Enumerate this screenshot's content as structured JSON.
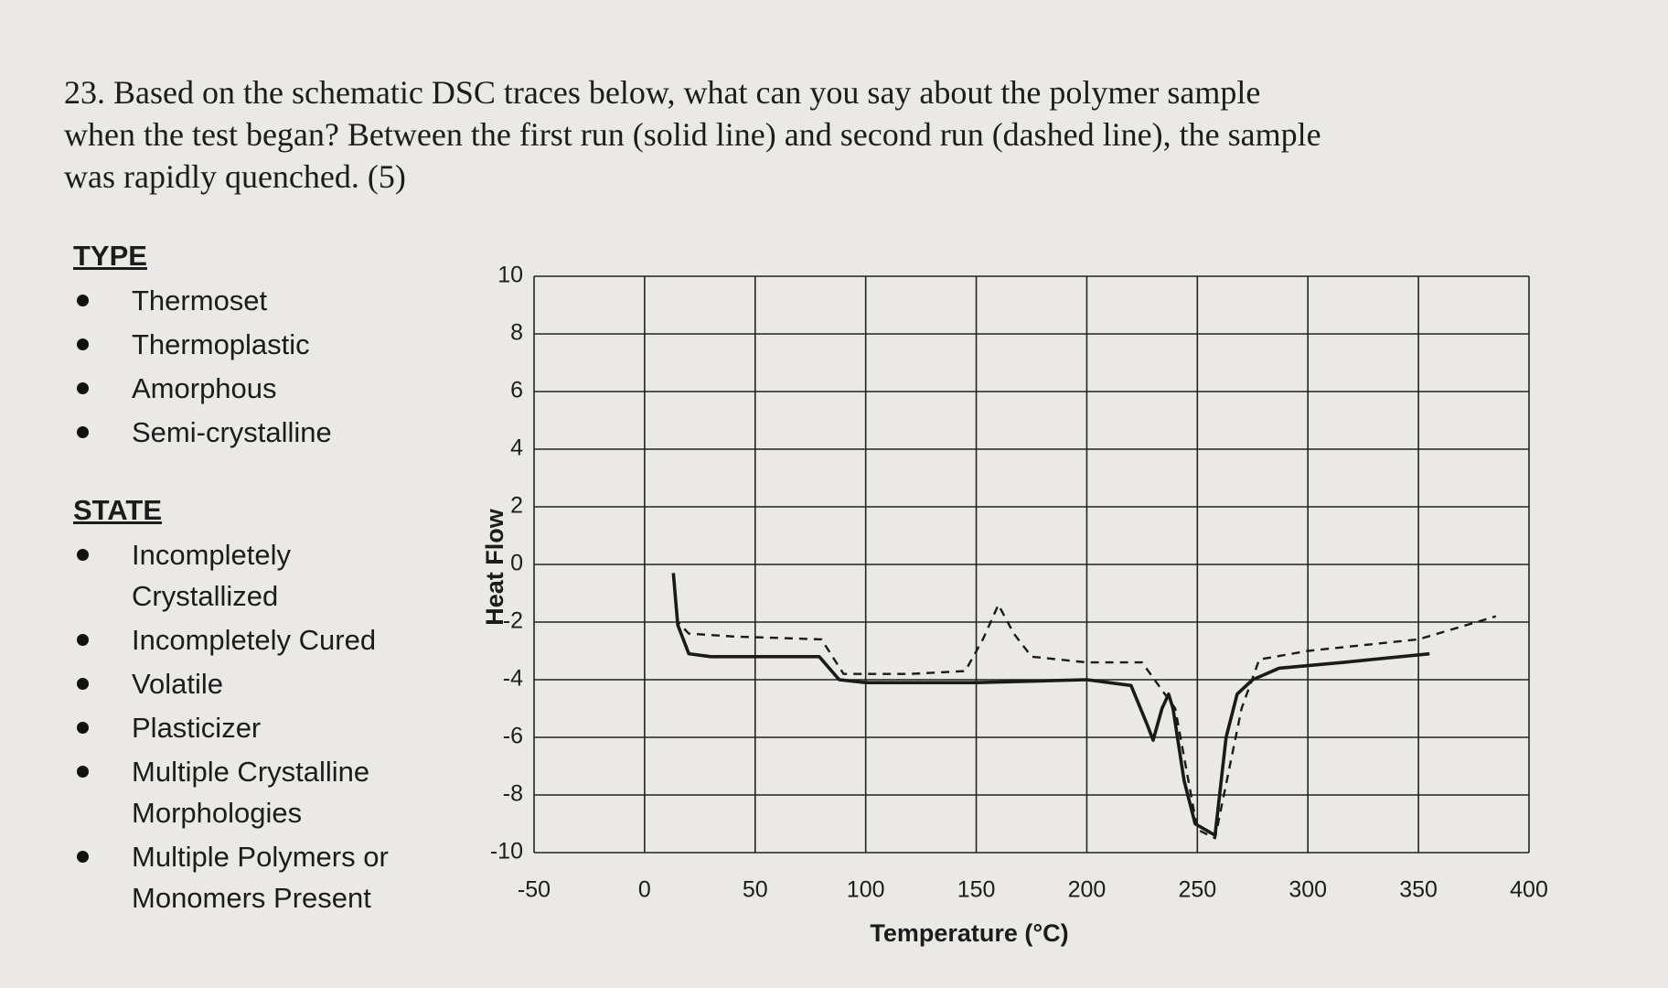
{
  "question": [
    "23. Based on the schematic DSC traces below,  what can you say about the polymer sample",
    "when the test began? Between the first run (solid line) and second run (dashed line), the sample",
    "was rapidly quenched. (5)"
  ],
  "type_section": {
    "heading": "TYPE",
    "items": [
      [
        "Thermoset"
      ],
      [
        "Thermoplastic"
      ],
      [
        "Amorphous"
      ],
      [
        "Semi-crystalline"
      ]
    ]
  },
  "state_section": {
    "heading": "STATE",
    "items": [
      [
        "Incompletely",
        "Crystallized"
      ],
      [
        "Incompletely Cured"
      ],
      [
        "Volatile"
      ],
      [
        "Plasticizer"
      ],
      [
        "Multiple Crystalline",
        "Morphologies"
      ],
      [
        "Multiple Polymers or",
        "Monomers Present"
      ]
    ]
  },
  "chart_data": {
    "type": "line",
    "xlabel": "Temperature (°C)",
    "ylabel": "Heat Flow",
    "xlim": [
      -50,
      400
    ],
    "ylim": [
      -10,
      10
    ],
    "xticks": [
      -50,
      0,
      50,
      100,
      150,
      200,
      250,
      300,
      350,
      400
    ],
    "yticks": [
      -10,
      -8,
      -6,
      -4,
      -2,
      0,
      2,
      4,
      6,
      8,
      10
    ],
    "grid": true,
    "series": [
      {
        "style": "solid",
        "color": "#1a1a1a",
        "x": [
          13,
          15,
          20,
          30,
          79,
          88,
          100,
          150,
          200,
          220,
          227,
          230,
          234,
          237,
          239,
          244,
          249,
          258,
          263,
          268,
          275,
          287,
          316,
          355
        ],
        "values": [
          -0.3,
          -2.1,
          -3.1,
          -3.2,
          -3.2,
          -4.0,
          -4.1,
          -4.1,
          -4.0,
          -4.2,
          -5.5,
          -6.1,
          -5.0,
          -4.5,
          -5.0,
          -7.5,
          -9.0,
          -9.4,
          -6.0,
          -4.5,
          -4.0,
          -3.6,
          -3.4,
          -3.1
        ]
      },
      {
        "style": "dashed",
        "color": "#1a1a1a",
        "x": [
          13,
          15,
          20,
          40,
          80,
          90,
          120,
          145,
          153,
          160,
          167,
          175,
          200,
          225,
          240,
          250,
          258,
          270,
          278,
          300,
          350,
          385
        ],
        "values": [
          -0.3,
          -2.0,
          -2.4,
          -2.5,
          -2.6,
          -3.8,
          -3.8,
          -3.7,
          -2.6,
          -1.4,
          -2.4,
          -3.2,
          -3.4,
          -3.4,
          -5.0,
          -9.2,
          -9.5,
          -5.0,
          -3.3,
          -3.0,
          -2.6,
          -1.8
        ]
      }
    ]
  }
}
